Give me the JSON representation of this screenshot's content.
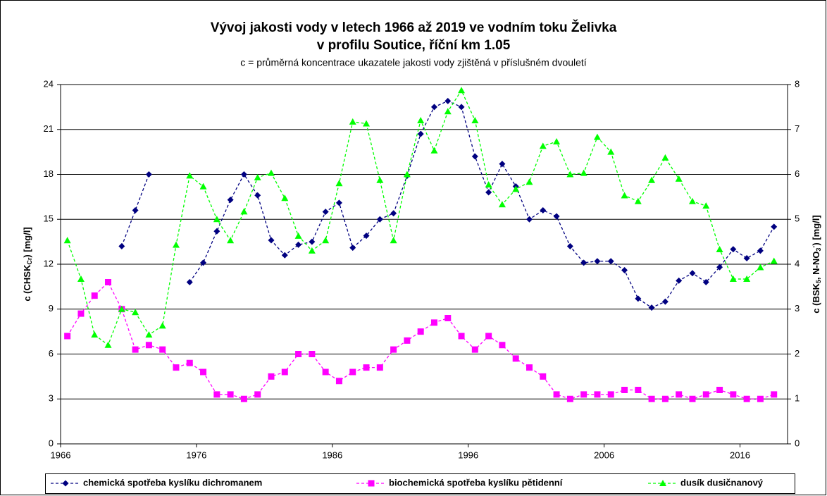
{
  "chart_data": {
    "type": "line",
    "title": [
      "Vývoj jakosti vody v letech 1966 až 2019 ve vodním toku Želivka",
      "v profilu Soutice, říční km 1.05"
    ],
    "subtitle": "c = průměrná koncentrace ukazatele jakosti vody zjištěná v příslušném dvouletí",
    "ylabel": [
      "c (CHSK",
      "Cr",
      ") [mg/l]"
    ],
    "y2label": [
      "c (BSK",
      "5",
      ", N-NO",
      "3",
      "-",
      ") [mg/l]"
    ],
    "x": [
      1966.5,
      1967.5,
      1968.5,
      1969.5,
      1970.5,
      1971.5,
      1972.5,
      1973.5,
      1974.5,
      1975.5,
      1976.5,
      1977.5,
      1978.5,
      1979.5,
      1980.5,
      1981.5,
      1982.5,
      1983.5,
      1984.5,
      1985.5,
      1986.5,
      1987.5,
      1988.5,
      1989.5,
      1990.5,
      1991.5,
      1992.5,
      1993.5,
      1994.5,
      1995.5,
      1996.5,
      1997.5,
      1998.5,
      1999.5,
      2000.5,
      2001.5,
      2002.5,
      2003.5,
      2004.5,
      2005.5,
      2006.5,
      2007.5,
      2008.5,
      2009.5,
      2010.5,
      2011.5,
      2012.5,
      2013.5,
      2014.5,
      2015.5,
      2016.5,
      2017.5,
      2018.5
    ],
    "xlim": [
      1966,
      2019.5
    ],
    "xticks": [
      1966,
      1976,
      1986,
      1996,
      2006,
      2016
    ],
    "ylim": [
      0,
      24
    ],
    "yticks": [
      0,
      3,
      6,
      9,
      12,
      15,
      18,
      21,
      24
    ],
    "y2lim": [
      0,
      8
    ],
    "y2ticks": [
      0,
      1,
      2,
      3,
      4,
      5,
      6,
      7,
      8
    ],
    "grid": true,
    "legend": "bottom",
    "series": [
      {
        "name": "chemická spotřeba kyslíku dichromanem",
        "color": "#000080",
        "marker": "diamond",
        "values": [
          null,
          null,
          null,
          null,
          13.2,
          15.6,
          18.0,
          null,
          null,
          10.8,
          12.1,
          14.2,
          16.3,
          18.0,
          16.6,
          13.6,
          12.6,
          13.3,
          13.5,
          15.5,
          16.1,
          13.1,
          13.9,
          15.0,
          15.4,
          17.9,
          20.7,
          22.5,
          22.9,
          22.5,
          19.2,
          16.8,
          18.7,
          17.2,
          15.0,
          15.6,
          15.2,
          13.2,
          12.1,
          12.2,
          12.2,
          11.6,
          9.7,
          9.1,
          9.5,
          10.9,
          11.4,
          10.8,
          11.8,
          13.0,
          12.4,
          12.9,
          14.5
        ]
      },
      {
        "name": "biochemická spotřeba kyslíku pětidenní",
        "color": "#ff00ff",
        "marker": "square",
        "axis": "y2",
        "values": [
          2.4,
          2.9,
          3.3,
          3.6,
          3.0,
          2.1,
          2.2,
          2.1,
          1.7,
          1.8,
          1.6,
          1.1,
          1.1,
          1.0,
          1.1,
          1.5,
          1.6,
          2.0,
          2.0,
          1.6,
          1.4,
          1.6,
          1.7,
          1.7,
          2.1,
          2.3,
          2.5,
          2.7,
          2.8,
          2.4,
          2.1,
          2.4,
          2.2,
          1.9,
          1.7,
          1.5,
          1.1,
          1.0,
          1.1,
          1.1,
          1.1,
          1.2,
          1.2,
          1.0,
          1.0,
          1.1,
          1.0,
          1.1,
          1.2,
          1.1,
          1.0,
          1.0,
          1.1
        ]
      },
      {
        "name": "dusík dusičnanový",
        "color": "#00ff00",
        "marker": "triangle",
        "axis": "y2",
        "values": [
          4.53,
          3.67,
          2.43,
          2.2,
          3.0,
          2.93,
          2.43,
          2.63,
          4.43,
          5.97,
          5.73,
          5.0,
          4.53,
          5.17,
          5.93,
          6.03,
          5.47,
          4.63,
          4.3,
          4.53,
          5.8,
          7.17,
          7.13,
          5.87,
          4.53,
          6.0,
          7.2,
          6.53,
          7.4,
          7.87,
          7.2,
          5.77,
          5.33,
          5.67,
          5.83,
          6.63,
          6.73,
          6.0,
          6.03,
          6.83,
          6.5,
          5.53,
          5.4,
          5.87,
          6.37,
          5.9,
          5.4,
          5.3,
          4.33,
          3.67,
          3.67,
          3.93,
          4.07
        ]
      }
    ]
  }
}
